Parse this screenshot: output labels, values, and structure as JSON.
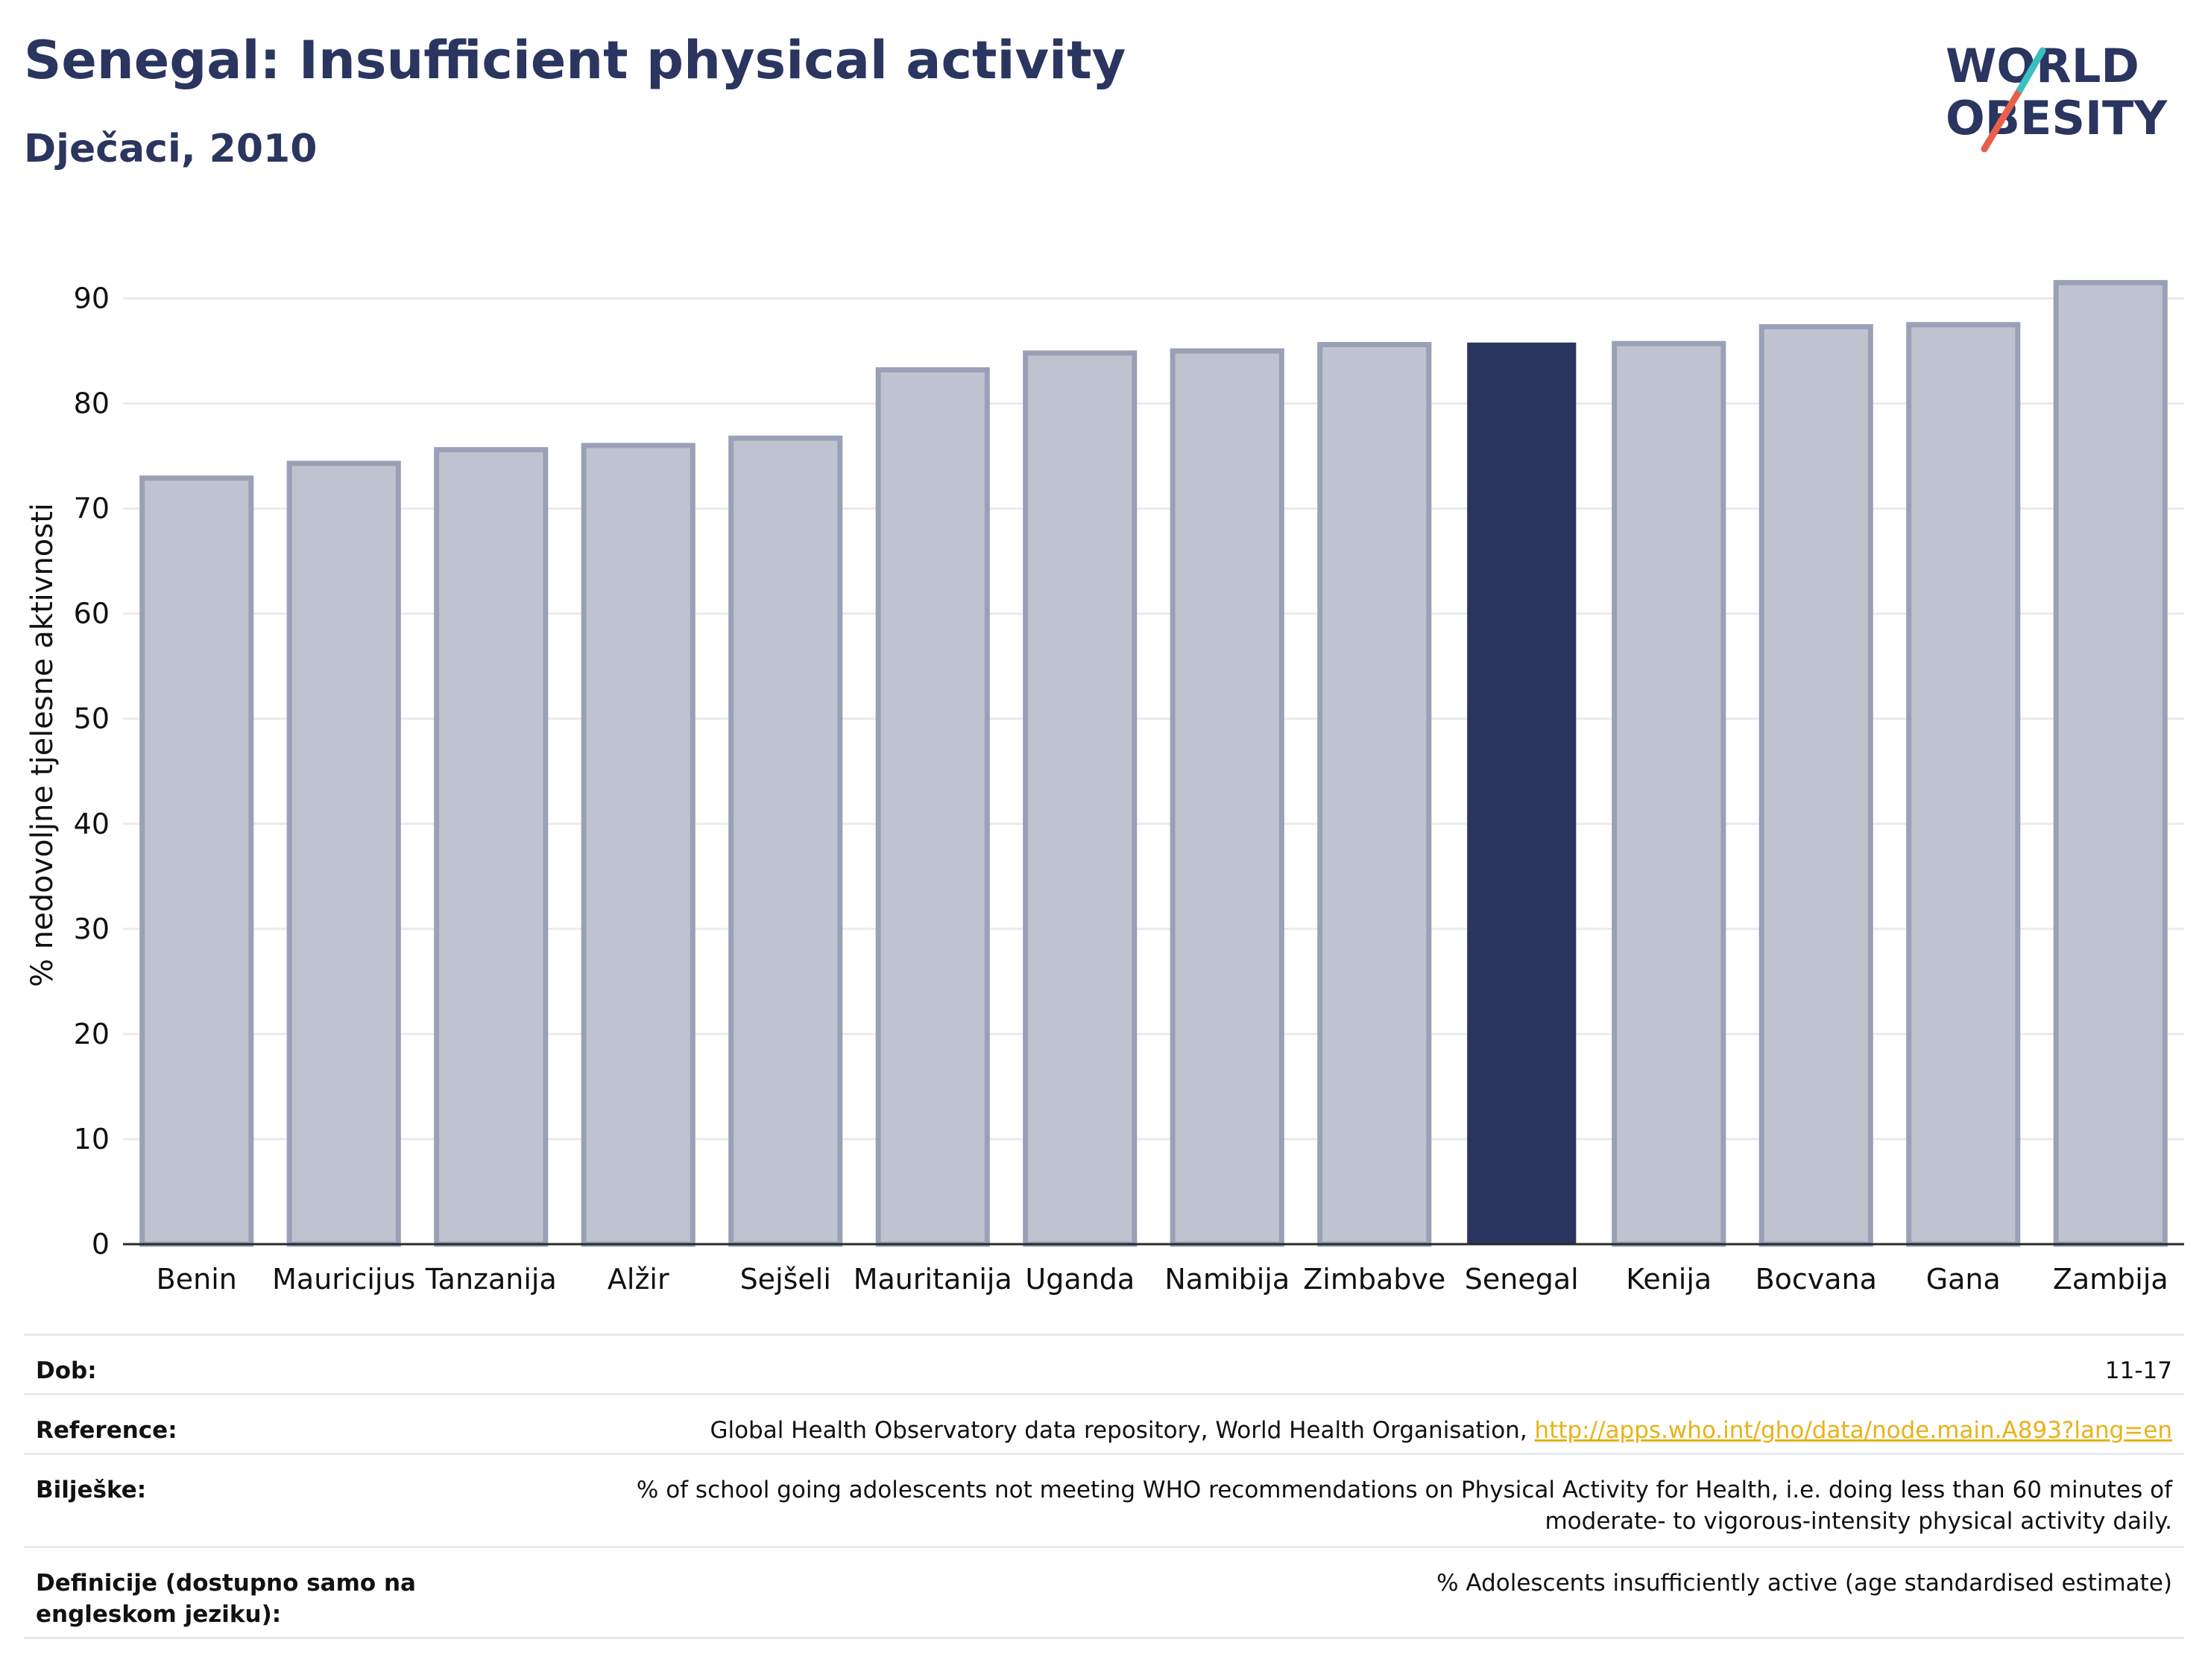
{
  "header": {
    "title": "Senegal: Insufficient physical activity",
    "subtitle": "Dječaci, 2010"
  },
  "logo": {
    "line1": "WORLD",
    "line2": "OBESITY",
    "accent_colors": [
      "#3bbfbf",
      "#e8604c"
    ]
  },
  "chart_data": {
    "type": "bar",
    "categories": [
      "Benin",
      "Mauricijus",
      "Tanzanija",
      "Alžir",
      "Sejšeli",
      "Mauritanija",
      "Uganda",
      "Namibija",
      "Zimbabve",
      "Senegal",
      "Kenija",
      "Bocvana",
      "Gana",
      "Zambija"
    ],
    "values": [
      72.9,
      74.3,
      75.6,
      76.0,
      76.7,
      83.2,
      84.8,
      85.0,
      85.6,
      85.8,
      85.7,
      87.3,
      87.5,
      91.5
    ],
    "highlight": "Senegal",
    "ylabel": "% nedovoljne tjelesne aktivnosti",
    "xlabel": "",
    "ylim": [
      0,
      95
    ],
    "yticks": [
      0,
      10,
      20,
      30,
      40,
      50,
      60,
      70,
      80,
      90
    ],
    "grid": true,
    "colors": {
      "bar": "#bfc3d0",
      "bar_edge": "#9aa1b6",
      "highlight": "#2a3560"
    }
  },
  "meta": [
    {
      "label": "Dob:",
      "value": "11-17"
    },
    {
      "label": "Reference:",
      "value": "Global Health Observatory data repository, World Health Organisation, ",
      "link": "http://apps.who.int/gho/data/node.main.A893?lang=en"
    },
    {
      "label": "Bilješke:",
      "value": "% of school going adolescents not meeting WHO recommendations on Physical Activity for Health, i.e. doing less than 60 minutes of moderate- to vigorous-intensity physical activity daily."
    },
    {
      "label": "Definicije (dostupno samo na engleskom jeziku):",
      "value": "% Adolescents insufficiently active (age standardised estimate)"
    }
  ]
}
